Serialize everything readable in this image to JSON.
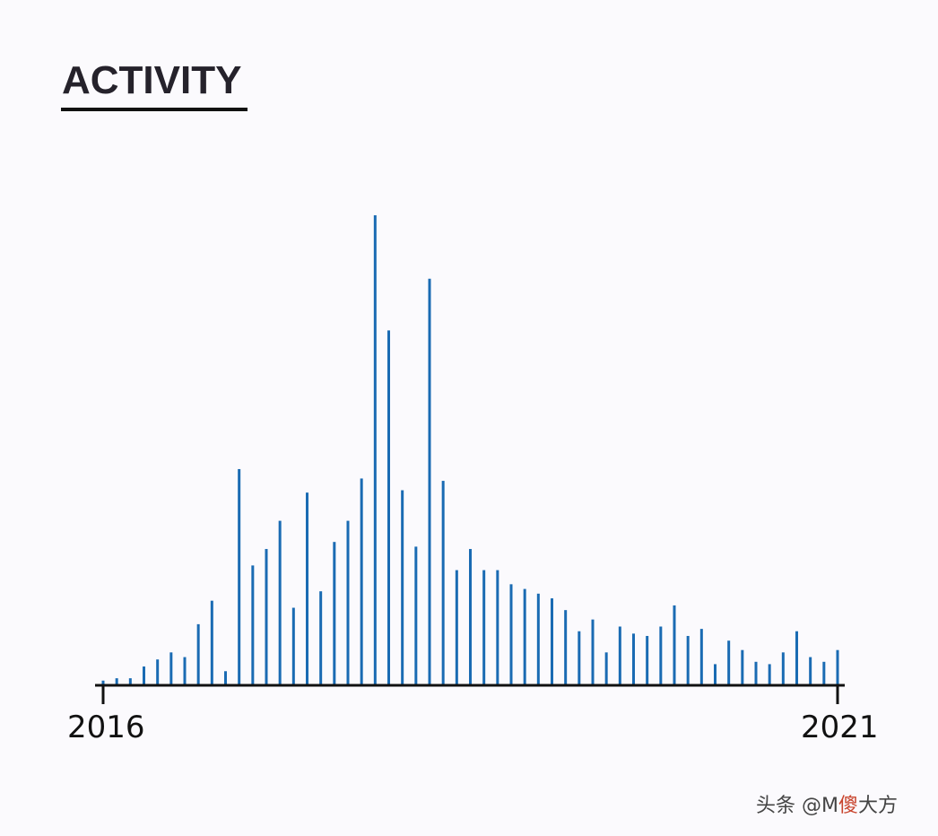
{
  "chart_data": {
    "type": "bar",
    "title": "ACTIVITY",
    "xlabel": "",
    "ylabel": "",
    "x_ticks": [
      "2016",
      "2021"
    ],
    "grid": false,
    "legend": "none",
    "ylim": [
      0,
      100
    ],
    "series": [
      {
        "color": "#1a6bb3",
        "values": [
          1,
          1.5,
          1.5,
          4,
          5.5,
          7,
          6,
          13,
          18,
          3,
          46,
          25.5,
          29,
          35,
          16.5,
          41,
          20,
          30.5,
          35,
          44,
          100,
          75.5,
          41.5,
          29.5,
          86.5,
          43.5,
          24.5,
          29,
          24.5,
          24.5,
          21.5,
          20.5,
          19.5,
          18.5,
          16,
          11.5,
          14,
          7,
          12.5,
          11,
          10.5,
          12.5,
          17,
          10.5,
          12,
          4.5,
          9.5,
          7.5,
          5,
          4.5,
          7,
          11.5,
          6,
          5,
          7.5
        ]
      }
    ]
  },
  "watermark": {
    "prefix": "头条 @M",
    "highlight": "傻",
    "suffix": "大方"
  },
  "colors": {
    "background": "#fbfafd",
    "bar": "#1a6bb3",
    "axis": "#111111",
    "title": "#25222b"
  }
}
